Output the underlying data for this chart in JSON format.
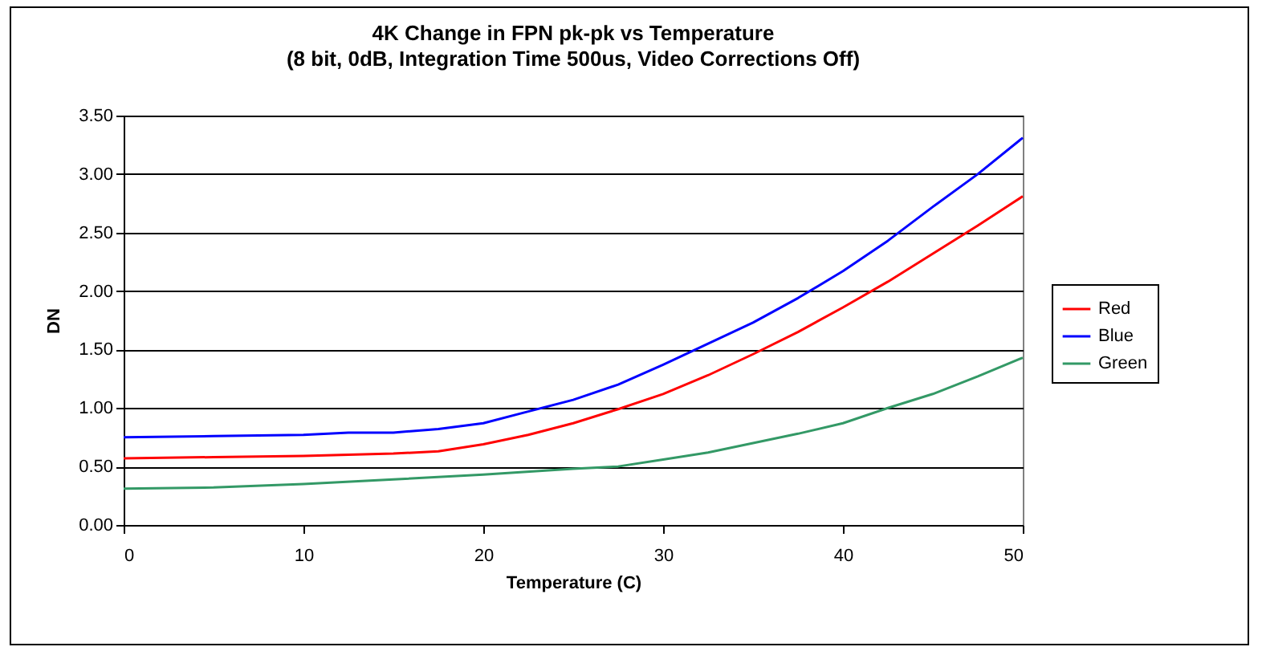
{
  "chart_data": {
    "type": "line",
    "title": "4K Change in FPN pk-pk vs Temperature",
    "subtitle": "(8 bit, 0dB, Integration Time 500us, Video Corrections Off)",
    "xlabel": "Temperature (C)",
    "ylabel": "DN",
    "series": [
      {
        "name": "Red",
        "color": "#ff0000",
        "x": [
          0,
          5,
          10,
          15,
          17.5,
          20,
          22.5,
          25,
          27.5,
          30,
          32.5,
          35,
          37.5,
          40,
          42.5,
          45,
          47.5,
          50
        ],
        "values": [
          0.57,
          0.58,
          0.59,
          0.61,
          0.63,
          0.69,
          0.77,
          0.87,
          0.99,
          1.12,
          1.28,
          1.46,
          1.65,
          1.86,
          2.08,
          2.32,
          2.56,
          2.81
        ]
      },
      {
        "name": "Blue",
        "color": "#0000ff",
        "x": [
          0,
          5,
          10,
          12.5,
          15,
          17.5,
          20,
          22.5,
          25,
          27.5,
          30,
          32.5,
          35,
          37.5,
          40,
          42.5,
          45,
          47.5,
          50
        ],
        "values": [
          0.75,
          0.76,
          0.77,
          0.79,
          0.79,
          0.82,
          0.87,
          0.97,
          1.07,
          1.2,
          1.37,
          1.55,
          1.73,
          1.94,
          2.17,
          2.43,
          2.72,
          3.0,
          3.31
        ]
      },
      {
        "name": "Green",
        "color": "#339966",
        "x": [
          0,
          5,
          10,
          15,
          20,
          25,
          27.5,
          30,
          32.5,
          35,
          37.5,
          40,
          42.5,
          45,
          47.5,
          50
        ],
        "values": [
          0.31,
          0.32,
          0.35,
          0.39,
          0.43,
          0.48,
          0.5,
          0.56,
          0.62,
          0.7,
          0.78,
          0.87,
          1.0,
          1.12,
          1.27,
          1.43
        ]
      }
    ],
    "xlim": [
      0,
      50
    ],
    "xticks": [
      0,
      10,
      20,
      30,
      40,
      50
    ],
    "ylim": [
      0,
      3.5
    ],
    "yticks": [
      {
        "value": 0,
        "label": "0.00"
      },
      {
        "value": 0.5,
        "label": "0.50"
      },
      {
        "value": 1,
        "label": "1.00"
      },
      {
        "value": 1.5,
        "label": "1.50"
      },
      {
        "value": 2,
        "label": "2.00"
      },
      {
        "value": 2.5,
        "label": "2.50"
      },
      {
        "value": 3,
        "label": "3.00"
      },
      {
        "value": 3.5,
        "label": "3.50"
      }
    ],
    "grid": "y",
    "legend": "right",
    "marker": "none",
    "line_style": "solid"
  }
}
